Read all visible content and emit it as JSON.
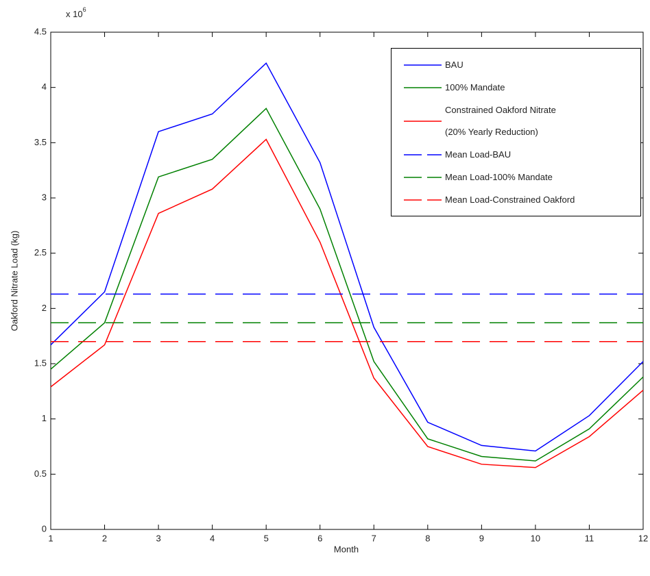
{
  "chart_data": {
    "type": "line",
    "xlabel": "Month",
    "ylabel": "Oakford Nitrate Load (kg)",
    "y_multiplier": "x 10",
    "y_multiplier_exponent": "6",
    "x": [
      1,
      2,
      3,
      4,
      5,
      6,
      7,
      8,
      9,
      10,
      11,
      12
    ],
    "xlim": [
      1,
      12
    ],
    "xticks": [
      1,
      2,
      3,
      4,
      5,
      6,
      7,
      8,
      9,
      10,
      11,
      12
    ],
    "ylim": [
      0,
      4.5
    ],
    "yticks": [
      0,
      0.5,
      1,
      1.5,
      2,
      2.5,
      3,
      3.5,
      4,
      4.5
    ],
    "grid": false,
    "legend": "upper right",
    "series": [
      {
        "name": "BAU",
        "color": "#0000ff",
        "values": [
          1.67,
          2.15,
          3.6,
          3.76,
          4.22,
          3.32,
          1.83,
          0.97,
          0.76,
          0.71,
          1.03,
          1.52
        ]
      },
      {
        "name": "100% Mandate",
        "color": "#008000",
        "values": [
          1.45,
          1.87,
          3.19,
          3.35,
          3.81,
          2.9,
          1.52,
          0.82,
          0.66,
          0.62,
          0.91,
          1.38
        ]
      },
      {
        "name": "Constrained Oakford Nitrate\n(20% Yearly Reduction)",
        "color": "#ff0000",
        "values": [
          1.29,
          1.67,
          2.86,
          3.08,
          3.53,
          2.6,
          1.37,
          0.75,
          0.59,
          0.56,
          0.84,
          1.26
        ]
      }
    ],
    "mean_lines": [
      {
        "name": "Mean Load-BAU",
        "color": "#0000ff",
        "value": 2.13
      },
      {
        "name": "Mean Load-100% Mandate",
        "color": "#008000",
        "value": 1.87
      },
      {
        "name": "Mean Load-Constrained Oakford",
        "color": "#ff0000",
        "value": 1.7
      }
    ]
  }
}
